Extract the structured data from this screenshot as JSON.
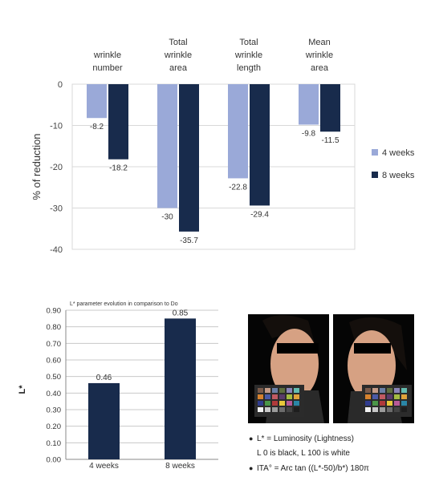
{
  "chart_data": [
    {
      "type": "bar",
      "ylabel": "% of reduction",
      "ylim": [
        -40,
        0
      ],
      "yticks": [
        0,
        -10,
        -20,
        -30,
        -40
      ],
      "categories": [
        [
          "wrinkle",
          "number"
        ],
        [
          "Total",
          "wrinkle",
          "area"
        ],
        [
          "Total",
          "wrinkle",
          "length"
        ],
        [
          "Mean",
          "wrinkle",
          "area"
        ]
      ],
      "series": [
        {
          "name": "4 weeks",
          "color": "#9aa9d8",
          "values": [
            -8.2,
            -30,
            -22.8,
            -9.8
          ],
          "labels": [
            "-8.2",
            "-30",
            "-22.8",
            "-9.8"
          ]
        },
        {
          "name": "8 weeks",
          "color": "#182b4c",
          "values": [
            -18.2,
            -35.7,
            -29.4,
            -11.5
          ],
          "labels": [
            "-18.2",
            "-35.7",
            "-29.4",
            "-11.5"
          ]
        }
      ],
      "legend": "right",
      "grid": true
    },
    {
      "type": "bar",
      "title": "L* parameter evolution in comparison to Do",
      "ylabel": "L*",
      "ylim": [
        0,
        0.9
      ],
      "yticks": [
        "0.00",
        "0.10",
        "0.20",
        "0.30",
        "0.40",
        "0.50",
        "0.60",
        "0.70",
        "0.80",
        "0.90"
      ],
      "categories": [
        "4 weeks",
        "8 weeks"
      ],
      "values": [
        0.46,
        0.85
      ],
      "labels": [
        "0.46",
        "0.85"
      ],
      "color": "#182b4c",
      "grid": true
    }
  ],
  "notes": [
    {
      "bullet": "●",
      "text": "L* = Luminosity (Lightness)"
    },
    {
      "bullet": "",
      "text": "L 0 is black, L 100 is white"
    },
    {
      "bullet": "●",
      "text": "ITA° = Arc tan ((L*-50)/b*) 180π"
    }
  ],
  "colors": {
    "face": "#d6a183",
    "background": "#000000",
    "hair": "#140f0c",
    "eye_bar": "#000000"
  }
}
